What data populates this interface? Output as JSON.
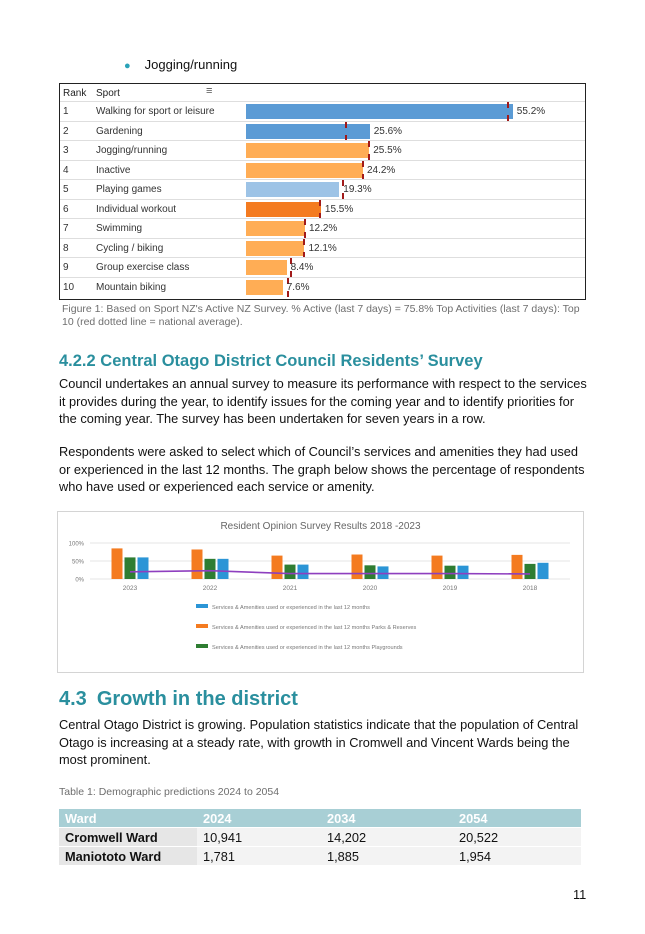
{
  "bullet": "Jogging/running",
  "sport_chart": {
    "col_rank": "Rank",
    "col_sport": "Sport",
    "rows": [
      {
        "rank": "1",
        "sport": "Walking for sport or leisure",
        "label": "55.2%"
      },
      {
        "rank": "2",
        "sport": "Gardening",
        "label": "25.6%"
      },
      {
        "rank": "3",
        "sport": "Jogging/running",
        "label": "25.5%"
      },
      {
        "rank": "4",
        "sport": "Inactive",
        "label": "24.2%"
      },
      {
        "rank": "5",
        "sport": "Playing games",
        "label": "19.3%"
      },
      {
        "rank": "6",
        "sport": "Individual workout",
        "label": "15.5%"
      },
      {
        "rank": "7",
        "sport": "Swimming",
        "label": "12.2%"
      },
      {
        "rank": "8",
        "sport": "Cycling / biking",
        "label": "12.1%"
      },
      {
        "rank": "9",
        "sport": "Group exercise class",
        "label": "8.4%"
      },
      {
        "rank": "10",
        "sport": "Mountain biking",
        "label": "7.6%"
      }
    ]
  },
  "figure_caption": "Figure 1: Based on Sport NZ's Active NZ Survey. % Active (last 7 days) = 75.8% Top Activities (last 7 days): Top 10 (red dotted line = national average).",
  "section_422": {
    "heading": "4.2.2 Central Otago District Council Residents’ Survey",
    "para1": "Council undertakes an annual survey to measure its performance with respect to the services it provides during the year, to identify issues for the coming year and to identify priorities for the coming year. The survey has been undertaken for seven years in a row.",
    "para2": "Respondents were asked to select which of Council’s services and amenities they had used or experienced in the last 12 months. The graph below shows the percentage of respondents who have used or experienced each service or amenity."
  },
  "chart_data": [
    {
      "type": "bar",
      "orientation": "horizontal",
      "categories": [
        "Walking for sport or leisure",
        "Gardening",
        "Jogging/running",
        "Inactive",
        "Playing games",
        "Individual workout",
        "Swimming",
        "Cycling / biking",
        "Group exercise class",
        "Mountain biking"
      ],
      "values": [
        55.2,
        25.6,
        25.5,
        24.2,
        19.3,
        15.5,
        12.2,
        12.1,
        8.4,
        7.6
      ],
      "bar_colors": [
        "#5b9bd5",
        "#5b9bd5",
        "#ffad55",
        "#ffad55",
        "#9dc3e6",
        "#f47b20",
        "#ffad55",
        "#ffad55",
        "#ffad55",
        "#ffad55"
      ],
      "national_average": [
        54.0,
        20.5,
        25.2,
        24.0,
        19.8,
        15.2,
        12.0,
        11.8,
        9.0,
        8.5
      ],
      "national_average_color": "#a11a1a",
      "xlim": [
        0,
        60
      ],
      "legend": "none"
    },
    {
      "type": "bar",
      "title": "Resident Opinion Survey Results 2018 -2023",
      "categories": [
        "2023",
        "2022",
        "2021",
        "2020",
        "2019",
        "2018"
      ],
      "yticks": [
        "100%",
        "50%",
        "0%"
      ],
      "ylim": [
        0,
        100
      ],
      "series": [
        {
          "name": "Services & Amenities used or experienced in the last 12 months Parks & Reserves",
          "color": "#f47b20",
          "values": [
            85,
            82,
            65,
            68,
            65,
            67
          ]
        },
        {
          "name": "Services & Amenities used or experienced in the last 12 months Playgrounds",
          "color": "#2e7d32",
          "values": [
            60,
            56,
            40,
            38,
            37,
            42
          ]
        },
        {
          "name": "Services & Amenities used or experienced in the last 12 months",
          "color": "#2b95d6",
          "values": [
            60,
            56,
            40,
            35,
            37,
            45
          ]
        }
      ],
      "trend_line": {
        "color": "#8e3fbf",
        "values": [
          20,
          23,
          15,
          15,
          15,
          14
        ]
      },
      "legend_order": [
        2,
        0,
        1
      ],
      "legend": "bottom"
    }
  ],
  "section_43": {
    "number": "4.3",
    "heading": "Growth in the district",
    "para": "Central Otago District is growing. Population statistics indicate that the population of Central Otago is increasing at a steady rate, with growth in Cromwell and Vincent Wards being the most prominent."
  },
  "table": {
    "caption": "Table 1: Demographic predictions 2024 to 2054",
    "headers": [
      "Ward",
      "2024",
      "2034",
      "2054"
    ],
    "rows": [
      [
        "Cromwell Ward",
        "10,941",
        "14,202",
        "20,522"
      ],
      [
        "Maniototo Ward",
        "1,781",
        "1,885",
        "1,954"
      ]
    ]
  },
  "page_number": "11"
}
